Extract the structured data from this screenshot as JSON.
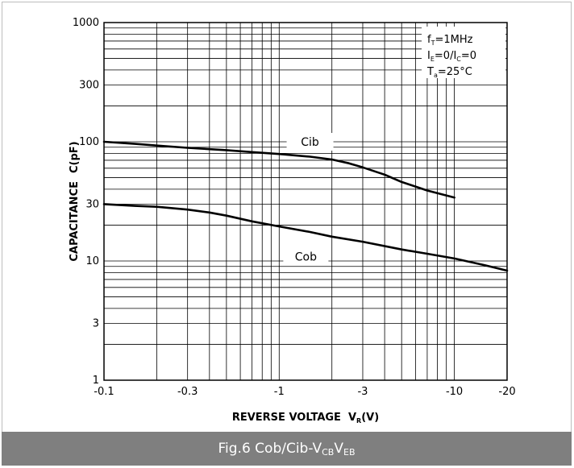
{
  "chart_data": {
    "type": "line",
    "xlabel": "REVERSE VOLTAGE",
    "xlabel_symbol": "V",
    "xlabel_subscript": "R",
    "xlabel_unit": "(V)",
    "ylabel": "CAPACITANCE",
    "ylabel_unit": "C(pF)",
    "x_scale": "log",
    "y_scale": "log",
    "xlim": [
      -0.1,
      -20
    ],
    "ylim": [
      1,
      1000
    ],
    "grid": true,
    "x_tick_labels": [
      {
        "value": -0.1,
        "label": "-0.1"
      },
      {
        "value": -0.3,
        "label": "-0.3"
      },
      {
        "value": -1,
        "label": "-1"
      },
      {
        "value": -3,
        "label": "-3"
      },
      {
        "value": -10,
        "label": "-10"
      },
      {
        "value": -20,
        "label": "-20"
      }
    ],
    "y_tick_labels": [
      {
        "value": 1,
        "label": "1"
      },
      {
        "value": 3,
        "label": "3"
      },
      {
        "value": 10,
        "label": "10"
      },
      {
        "value": 30,
        "label": "30"
      },
      {
        "value": 100,
        "label": "100"
      },
      {
        "value": 300,
        "label": "300"
      },
      {
        "value": 1000,
        "label": "1000"
      }
    ],
    "conditions": [
      {
        "main": "f",
        "sub": "T",
        "rest": "=1MHz"
      },
      {
        "main": "I",
        "sub": "E",
        "rest": "=0/I",
        "sub2": "C",
        "rest2": "=0"
      },
      {
        "main": "T",
        "sub": "a",
        "rest": "=25°C"
      }
    ],
    "series": [
      {
        "name": "Cib",
        "x": [
          -0.1,
          -0.15,
          -0.2,
          -0.3,
          -0.5,
          -0.7,
          -1,
          -1.5,
          -2,
          -2.5,
          -3,
          -4,
          -5,
          -7,
          -10
        ],
        "values": [
          100,
          96,
          93,
          89,
          85,
          82,
          79,
          75,
          71,
          66,
          61,
          53,
          46,
          39,
          34
        ]
      },
      {
        "name": "Cob",
        "x": [
          -0.1,
          -0.15,
          -0.2,
          -0.3,
          -0.4,
          -0.5,
          -0.7,
          -1,
          -1.5,
          -2,
          -3,
          -5,
          -7,
          -10,
          -15,
          -20
        ],
        "values": [
          30,
          29,
          28.5,
          27,
          25.5,
          24,
          21.5,
          19.5,
          17.5,
          16,
          14.5,
          12.5,
          11.5,
          10.5,
          9.2,
          8.3
        ]
      }
    ]
  },
  "figure_caption": {
    "prefix": "Fig.6 Cob/Cib-V",
    "sub1": "CB",
    "middle": "V",
    "sub2": "EB"
  }
}
